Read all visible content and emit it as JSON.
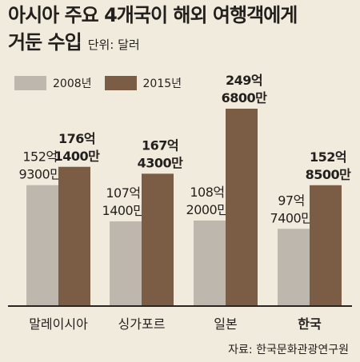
{
  "header": {
    "title_line1": "아시아 주요 4개국이 해외 여행객에게",
    "title_line2": "거둔 수입",
    "unit": "단위: 달러"
  },
  "source": "자료: 한국문화관광연구원",
  "colors": {
    "2008": "#bdb7ad",
    "2015": "#7b5c45",
    "background": "#f1ebde",
    "axis": "#2a2522"
  },
  "chart_data": {
    "type": "bar",
    "title": "아시아 주요 4개국이 해외 여행객에게 거둔 수입",
    "ylabel": "단위: 달러",
    "categories": [
      "말레이시아",
      "싱가포르",
      "일본",
      "한국"
    ],
    "highlight_category": "한국",
    "series": [
      {
        "name": "2008년",
        "values": [
          15293000000,
          10714000000,
          10820000000,
          9774000000
        ],
        "labels": [
          [
            "152억",
            "9300만"
          ],
          [
            "107억",
            "1400만"
          ],
          [
            "108억",
            "2000만"
          ],
          [
            "97억",
            "7400만"
          ]
        ]
      },
      {
        "name": "2015년",
        "values": [
          17614000000,
          16743000000,
          24968000000,
          15285000000
        ],
        "labels": [
          [
            "176억",
            "1400만"
          ],
          [
            "167억",
            "4300만"
          ],
          [
            "249억",
            "6800만"
          ],
          [
            "152억",
            "8500만"
          ]
        ]
      }
    ],
    "ylim": [
      0,
      24968000000
    ],
    "legend": "top-left"
  }
}
